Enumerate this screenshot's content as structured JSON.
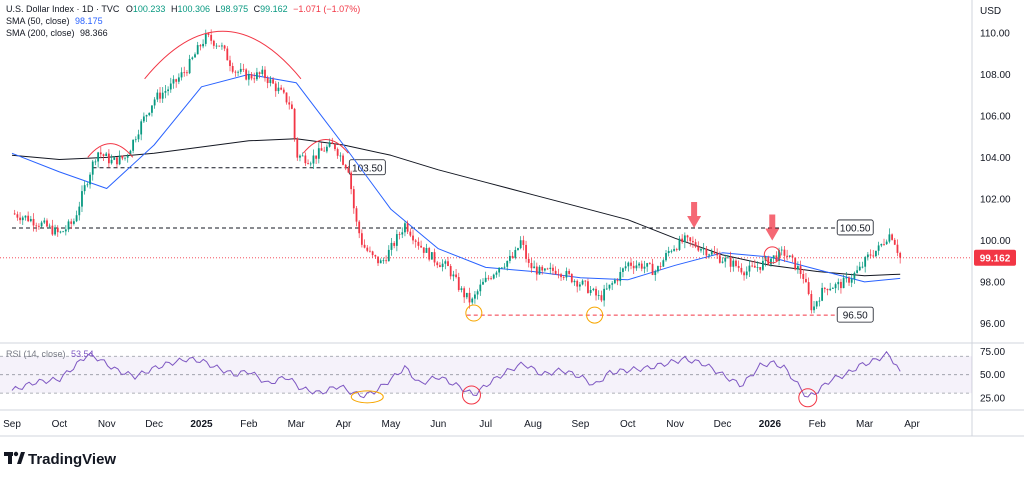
{
  "chart_data": {
    "type": "candlestick",
    "instrument": {
      "title": "U.S. Dollar Index · 1D · TVC",
      "ohlc": {
        "open_label": "O",
        "open": "100.233",
        "high_label": "H",
        "high": "100.306",
        "low_label": "L",
        "low": "98.975",
        "close_label": "C",
        "close": "99.162",
        "change": "−1.071 (−1.07%)"
      }
    },
    "indicators": [
      {
        "label": "SMA (50, close)",
        "value": "98.175",
        "color": "#2962ff"
      },
      {
        "label": "SMA (200, close)",
        "value": "98.366",
        "color": "#131722"
      }
    ],
    "currency_label": "USD",
    "y_axis": {
      "ylim": [
        95.2,
        111.2
      ],
      "ticks": [
        "110.00",
        "108.00",
        "106.00",
        "104.00",
        "102.00",
        "100.00",
        "98.00",
        "96.00"
      ],
      "tick_values": [
        110,
        108,
        106,
        104,
        102,
        100,
        98,
        96
      ]
    },
    "x_axis": {
      "xlim": [
        0,
        19
      ],
      "labels": [
        "Sep",
        "Oct",
        "Nov",
        "Dec",
        "2025",
        "Feb",
        "Mar",
        "Apr",
        "May",
        "Jun",
        "Jul",
        "Aug",
        "Sep",
        "Oct",
        "Nov",
        "Dec",
        "2026",
        "Feb",
        "Mar",
        "Apr"
      ],
      "label_positions": [
        0,
        1,
        2,
        3,
        4,
        5,
        6,
        7,
        8,
        9,
        10,
        11,
        12,
        13,
        14,
        15,
        16,
        17,
        18,
        19
      ]
    },
    "last_price": {
      "label": "99.162",
      "value": 99.162,
      "color": "#f23645"
    },
    "levels": [
      {
        "label": "103.50",
        "value": 103.5,
        "x_start": 1.7,
        "x_end": 7.1,
        "color": "#131722",
        "style": "dashed"
      },
      {
        "label": "100.50",
        "value": 100.6,
        "x_start": 0.0,
        "x_end": 17.4,
        "color": "#131722",
        "style": "dashed"
      },
      {
        "label": "96.50",
        "value": 96.4,
        "x_start": 9.6,
        "x_end": 17.4,
        "color": "#f23645",
        "style": "dashed"
      }
    ],
    "close_path": {
      "x": [
        0.0,
        0.3,
        0.7,
        1.0,
        1.3,
        1.6,
        1.8,
        2.1,
        2.4,
        2.7,
        3.0,
        3.4,
        3.7,
        4.0,
        4.1,
        4.4,
        4.7,
        5.0,
        5.3,
        5.6,
        5.9,
        6.0,
        6.3,
        6.6,
        6.8,
        7.0,
        7.1,
        7.25,
        7.4,
        7.6,
        7.8,
        8.0,
        8.3,
        8.6,
        8.9,
        9.2,
        9.5,
        9.7,
        9.9,
        10.1,
        10.3,
        10.6,
        10.75,
        10.9,
        11.2,
        11.5,
        11.8,
        12.1,
        12.4,
        12.6,
        12.85,
        13.0,
        13.3,
        13.6,
        13.9,
        14.2,
        14.4,
        14.6,
        14.9,
        15.2,
        15.5,
        15.8,
        16.0,
        16.3,
        16.5,
        16.7,
        16.9,
        17.0,
        17.2,
        17.4,
        17.6,
        17.75,
        17.9,
        18.1,
        18.3,
        18.5,
        18.6,
        18.75
      ],
      "values": [
        101.3,
        101.1,
        100.7,
        100.3,
        100.9,
        103.0,
        104.3,
        103.8,
        104.0,
        105.5,
        106.8,
        107.5,
        108.3,
        109.5,
        109.8,
        109.4,
        108.2,
        107.9,
        108.0,
        107.3,
        106.5,
        104.1,
        103.9,
        104.4,
        104.6,
        103.8,
        103.5,
        101.0,
        99.8,
        99.2,
        98.9,
        99.6,
        100.8,
        99.8,
        99.1,
        98.7,
        97.5,
        97.0,
        97.8,
        98.3,
        98.8,
        99.2,
        100.0,
        98.8,
        98.4,
        98.6,
        98.2,
        97.8,
        97.2,
        97.7,
        98.4,
        98.9,
        98.8,
        98.5,
        99.6,
        100.0,
        99.8,
        99.6,
        99.2,
        98.9,
        98.5,
        98.8,
        99.1,
        99.4,
        98.9,
        98.3,
        96.6,
        97.2,
        97.8,
        97.8,
        98.0,
        98.3,
        98.6,
        99.3,
        99.6,
        100.3,
        100.2,
        99.16
      ]
    },
    "sma50": {
      "x": [
        0.0,
        1.0,
        2.0,
        3.0,
        4.0,
        5.0,
        6.0,
        7.0,
        8.0,
        9.0,
        10.0,
        11.0,
        12.0,
        13.0,
        14.0,
        15.0,
        16.0,
        17.0,
        18.0,
        18.75
      ],
      "values": [
        104.2,
        103.3,
        102.5,
        104.6,
        107.4,
        108.0,
        107.6,
        104.6,
        101.5,
        99.6,
        98.7,
        98.5,
        98.2,
        98.1,
        98.8,
        99.4,
        99.2,
        98.6,
        98.0,
        98.17
      ]
    },
    "sma200": {
      "x": [
        0.0,
        1.0,
        2.0,
        3.0,
        4.0,
        5.0,
        6.0,
        7.0,
        8.0,
        9.0,
        10.0,
        11.0,
        12.0,
        13.0,
        14.0,
        15.0,
        16.0,
        17.0,
        18.0,
        18.75
      ],
      "values": [
        104.1,
        103.9,
        104.0,
        104.2,
        104.5,
        104.8,
        104.9,
        104.6,
        104.1,
        103.4,
        102.8,
        102.2,
        101.6,
        101.0,
        100.1,
        99.3,
        98.8,
        98.5,
        98.3,
        98.37
      ]
    },
    "annotations": {
      "arcs": [
        {
          "x_start": 1.6,
          "x_end": 2.55,
          "value": 104.7,
          "color": "#f23645"
        },
        {
          "x_start": 2.8,
          "x_end": 6.1,
          "value": 110.2,
          "color": "#f23645"
        },
        {
          "x_start": 6.15,
          "x_end": 7.1,
          "value": 104.9,
          "color": "#f23645"
        }
      ],
      "arrows": [
        {
          "x": 14.4,
          "value": 100.5,
          "color": "#f23645"
        },
        {
          "x": 16.05,
          "value": 99.9,
          "color": "#f23645"
        }
      ],
      "circles": [
        {
          "x": 9.75,
          "value": 96.5,
          "color": "#f7a600"
        },
        {
          "x": 12.3,
          "value": 96.4,
          "color": "#f7a600"
        },
        {
          "x": 16.05,
          "value": 99.3,
          "color": "#f23645"
        }
      ]
    },
    "rsi": {
      "label": "RSI (14, close)",
      "value": "53.54",
      "color": "#7e57c2",
      "ylim": [
        15,
        80
      ],
      "ticks": [
        "75.00",
        "50.00",
        "25.00"
      ],
      "tick_values": [
        75,
        50,
        25
      ],
      "band": [
        30,
        70
      ],
      "x": [
        0.0,
        0.5,
        1.0,
        1.3,
        1.6,
        1.8,
        2.2,
        2.6,
        3.0,
        3.3,
        3.7,
        4.0,
        4.3,
        4.7,
        5.0,
        5.4,
        5.8,
        6.1,
        6.5,
        6.9,
        7.2,
        7.45,
        7.7,
        8.0,
        8.3,
        8.6,
        9.0,
        9.4,
        9.75,
        10.1,
        10.5,
        10.8,
        11.2,
        11.6,
        12.0,
        12.3,
        12.6,
        13.0,
        13.4,
        13.8,
        14.2,
        14.6,
        15.0,
        15.4,
        15.8,
        16.05,
        16.3,
        16.5,
        16.8,
        17.0,
        17.3,
        17.6,
        17.9,
        18.2,
        18.5,
        18.75
      ],
      "values": [
        33,
        42,
        45,
        58,
        72,
        68,
        55,
        48,
        57,
        62,
        67,
        65,
        58,
        50,
        54,
        40,
        48,
        35,
        30,
        38,
        30,
        27,
        33,
        45,
        58,
        40,
        48,
        38,
        28,
        42,
        55,
        62,
        50,
        55,
        48,
        38,
        52,
        55,
        57,
        62,
        67,
        62,
        50,
        38,
        60,
        63,
        58,
        45,
        25,
        32,
        45,
        50,
        60,
        65,
        73,
        53.54
      ]
    },
    "rsi_annotations": [
      {
        "x": 7.5,
        "value": 26,
        "shape": "ellipse",
        "color": "#f7a600"
      },
      {
        "x": 9.7,
        "value": 28,
        "shape": "circle",
        "color": "#f23645"
      },
      {
        "x": 16.8,
        "value": 25,
        "shape": "circle",
        "color": "#f23645"
      }
    ]
  },
  "branding": {
    "name": "TradingView"
  }
}
